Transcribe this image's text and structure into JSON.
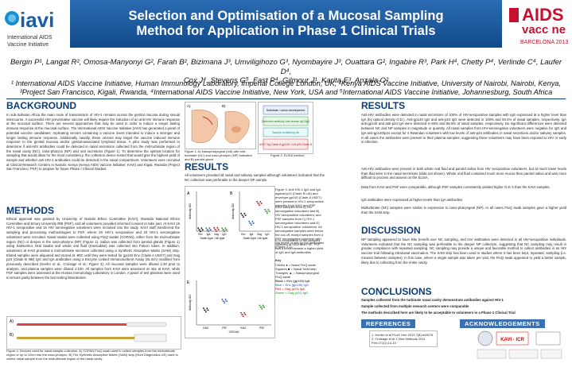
{
  "header": {
    "title_line1": "Selection and Optimisation of a Mucosal Sampling",
    "title_line2": "Method for Application in Phase 1 Clinical Trials",
    "left_logo": {
      "name": "iavi",
      "subtitle1": "International AIDS",
      "subtitle2": "Vaccine Initiative"
    },
    "right_logo": {
      "name": "AIDS",
      "sub": "vacc ne",
      "sub2": "BARCELONA 2013"
    }
  },
  "authors": {
    "line1": "Bergin P¹, Langat R², Omosa-Manyonyi G², Farah B², Bizimana J³, Umviligihozo G³, Nyombayire J³, Ouattara G², Ingabire R³, Park H⁴, Chetty P⁴, Verlinde C⁴, Laufer D⁴,",
    "line2": "Cox J⁴, Stevens G⁵, Fast P⁴, Gilmour J¹, Karita E³, Anzala O²"
  },
  "affiliations": {
    "line1": "¹ International AIDS Vaccine Initiative, Human Immunology Laboratory, Imperial College London, UK, ²Kenya AIDS Vaccine Initiative, University of Nairobi, Nairobi, Kenya,",
    "line2": "³Project San Francisco, Kigali, Rwanda, ⁴International AIDS Vaccine Initiative, New York, USA and ⁵International AIDS Vaccine Initiative, Johannesburg, South Africa"
  },
  "sections": {
    "background": "BACKGROUND",
    "methods": "METHODS",
    "results_mid": "RESULTS",
    "results_right": "RESULTS",
    "discussion": "DISCUSSION",
    "conclusions": "CONCLUSIONS",
    "references": "REFERENCES",
    "acknowledgements": "ACKNOWLEDGEMENTS"
  },
  "text": {
    "background": "In sub-Saharan Africa the main route of transmission of HIV-1 remains across the genital mucosa during sexual intercourse. A successful HIV preventative vaccine will likely require the induction of an anti-HIV immune response at the mucosal surface. There are several approaches that may be used in order to induce a longer lasting immune response at the mucosal surface. The International AIDS Vaccine Initiative (IAVI) has generated a panel of potential vaccine candidates; replicating vectors containing a vaccine insert intended to induce a stronger and longer lasting immune response. Additionally nasally, these vectors may target the vaccine induced immune response to the genital mucosa and/or genital-associated lymphoid tissue. A pilot study was performed to determine if anti-HIV antibodies could be detected in nasal secretions collected from the mid-turbinate region of the nasal cavity (NC), naso-pharynx (NP) and oral secretions (Figure 1). To determine the optimal location for sampling that would allow for the most consistency, the collection device tested that would give the highest yield of sample and whether anti-HIV-1 antibodies could be detected in the nasal compartment. Volunteers were recruited at Clinical Research Centers in Nairobi, Kenya (Kenya AIDS Vaccine Initiative; KAVI) and Kigali, Rwanda (Project San Francisco; PSF) to prepare for future Phase I Clinical Studies.",
    "methods": "Ethical approval was granted by University of Nairobi Ethics Committee (KAVI), Rwanda National Ethics Committee and Emory University IRB (PSF), and all volunteers provided informed consent to take part. At KAVI 15 HIV-1 seropositive and 15 HIV seronegative volunteers were recruited into the study. KAVI staff transferred the sampling and processing methodologies to PSF, where 20 HIV-1 seropositive and 20 HIV-1 seronegative volunteers were recruited. Nasal swabs were collected using FloQ swabs (COPAN), either from the mid-turbinate region (NC) or deeper in the naso-pharynx (NP) (Figure 1). Saliva was collected from parotid glands (Figure 1) using Salimetrics Oral Swabs and whole oral fluid (transudate) was collected into Falcon tubes. In addition, volunteers at KAVI provided a mid-turbinate secretion collected using a Synthetic Absorptive Matrix (SAM) strip. Eluted samples were aliquoted and stored at -80C until they were tested for gp140 Env (Clade A U92/7) and Gag p24 (Clade B IIIB) IgG and IgA antibodies using a Enzyme Linked Immunosorbent Assay (ELISA) modified from previously described (Keefer et al., Croisage et al.; Figure 3). All mucosal samples were diluted 1:20 prior to analysis, and plasma samples were diluted 1:100. All samples from KAVI were assessed on site at KAVI, while PSF samples were assessed at the Human Immunology Laboratory in London. A panel of test plasmas were used to ensure parity between the two testing laboratories.",
    "results_mid": "All volunteers provided all nasal and salivary samples although volunteers indicated that the NC collection was preferable to the deeper NP sample.",
    "fig1_caption": "Figure 1. A) Nasopharyngeal (red) with mid-turbinate (NC) and naso-pharynx (NP) indicated and B) parotid gland",
    "fig2_caption": "Figure 2. ELISA method",
    "fig3_caption": "Figure 3. Anti HIV-1 IgG and IgA against p24 (Clade B LAI) and envelope gp140 (Clade A U92/7) were present in HIV-1 seropositive samples from KAVI and PSF",
    "fig3_text": "KAVI samples from A) HIV seronegative volunteers and B) HIV seropositive volunteers; and PSF samples from C) HIV-1 seronegative volunteers and D) HIV-1 seropositive volunteers. All seronegative samples were below the cut-off, except samples from a PSF seronegative volunteer with low levels of anti-gp140 antibodies (Figure 3 C).",
    "fig3_text2": "E) A comparison of the samples collected at KAVI and PSF. PSF had a trend towards a higher yield of IgG and IgA antibodies",
    "key_title": "Key",
    "key_items": [
      "Circles ● = Nasal FloQ swab",
      "Squares ■ = Nasal SAM strip",
      "Triangles ▲ = Nasopharyngeal FloQ swab",
      "Black = Env (gp140) IgA",
      "Blue = Env (gp140) IgG",
      "Red = Gag (p24) IgA",
      "Green = Gag (p24) IgG"
    ],
    "fig4_caption": "Figure 4. Devices used for nasal sample collection. A) COPAN FloQ swab used to collect samples from the midturbinate region or up to 10cm into the naso-pharynx. B) The Synthetic Absorptive Matrix (SAM) strip (Hunt Diagnostics UK) used to collect nasal sample from the midturbinate region of the nasal cavity.",
    "results_right1": "Anti-HIV antibodies were detected in nasal secretions of 100% of HIV-seropositive samples with IgG expressed at a higher level than IgA (by optical density O.D.). Anti-gp140 IgG and anti-p24 IgG were detected in 100% and 93.4% of nasal samples, respectively. IgA anti-gp140 and anti-p24 IgA were detected in 84% and 86.5% of nasal samples, respectively. No significant differences were detected between NC and NP samples in magnitude or quantity. All nasal samples from HIV-seronegative volunteers were negative for IgG and IgA anti-gp140/p24 except for 4 Rwandan volunteers with low levels of anti-p24 antibodies in nasal secretions and/or salivary samples. In all cases the antibodies were present in their plasma samples, suggesting these volunteers may have been exposed to HIV or early in infection.",
    "results_right2": "Anti-HIV antibodies were present in both whole oral fluid and parotid saliva from HIV seropositive volunteers, but at much lower levels than that seen in the nasal secretions (data not shown). Whole oral fluid contained much more mucus than parotid saliva and was more difficult to process and assess on the ELISA.",
    "results_right3": "Data from KAVI and PSF were comparable, although PSF samples consistently yielded higher O.D.'s than the KAVI samples.",
    "results_right4": "IgG antibodies were expressed at higher levels than IgA antibodies.",
    "results_right5": "Midturbinate (NC) samples were similar in expression to naso-pharyngeal (NP). In all cases FloQ swab samples gave a higher yield than the SAM strip.",
    "discussion": "NP sampling appeared to have little benefit over NC sampling, and HIV antibodies were detected in all HIV-seropositive individuals. Volunteers indicated that the NC sampling was preferable to the deeper NP collection, suggesting that NC sampling may result in greater compliance with repeated sampling. NC sampling may provide a unique and favorable method to collect antibodies in an HIV vaccine trial following intranasal vaccination. The SAM strip has been used in studies where it has been kept, repeated, sampling (i.e. minutes between samples). In this case, where a single sample was taken per visit, the FloQ swab appeared to yield a better sample, likely due to collecting from the entire cavity.",
    "conclusion1": "Samples collected from the turbinate nasal cavity demonstrate antibodies against HIV-1",
    "conclusion2": "Sample collected from multiple research centers were comparable",
    "conclusion3": "The methods described here are likely to be acceptable to volunteers in a Phase 1 Clinical Trial",
    "references": "1. Keefer et al PLoS One 2012;7(8):e43076\n2. Croisage et al J Virol Methods 2011 Feb;172(1):14-10",
    "ack_logo": "KAVI - ICR"
  },
  "figure_labels": {
    "fig1_a": "A)",
    "fig1_b": "B)",
    "fig1_mid": "Mid-turbinate",
    "fig1_np": "Nasopharynx (naso-pharynx)",
    "fig2_boxes": [
      "Substrate / colour development",
      "Detection antibody anti-human IgG/IgA",
      "Sample containing Ab",
      "U92/7 Ag Clade A gp140 / LAI p24 Clade B"
    ],
    "fig4_a": "A)",
    "fig4_b": "B)"
  },
  "chart_data": [
    {
      "type": "scatter",
      "panel": "A",
      "ylabel": "Antibody OD",
      "xlabel": "Swab type / Ab type",
      "ylim": [
        0,
        3
      ],
      "categories": [
        "Env",
        "IgA",
        "Gag",
        "IgG"
      ],
      "series": [
        {
          "values": [
            0.1,
            0.1,
            0.12,
            0.1
          ]
        }
      ]
    },
    {
      "type": "scatter",
      "panel": "B",
      "ylabel": "Antibody OD",
      "xlabel": "Swab type / Ab type",
      "ylim": [
        0,
        3
      ],
      "categories": [
        "Env",
        "IgA",
        "Gag",
        "IgG"
      ],
      "series": [
        {
          "values": [
            1.2,
            0.6,
            2.1,
            1.5
          ]
        }
      ]
    },
    {
      "type": "scatter",
      "panel": "E",
      "ylabel": "Antibody OD",
      "xlabel": "CRC/Ab",
      "ylim": [
        0,
        3
      ],
      "categories": [
        "KAVI",
        "PSF",
        "KAVI",
        "PSF"
      ],
      "series": [
        {
          "values": [
            1.0,
            1.6,
            0.7,
            1.2
          ]
        }
      ]
    }
  ]
}
